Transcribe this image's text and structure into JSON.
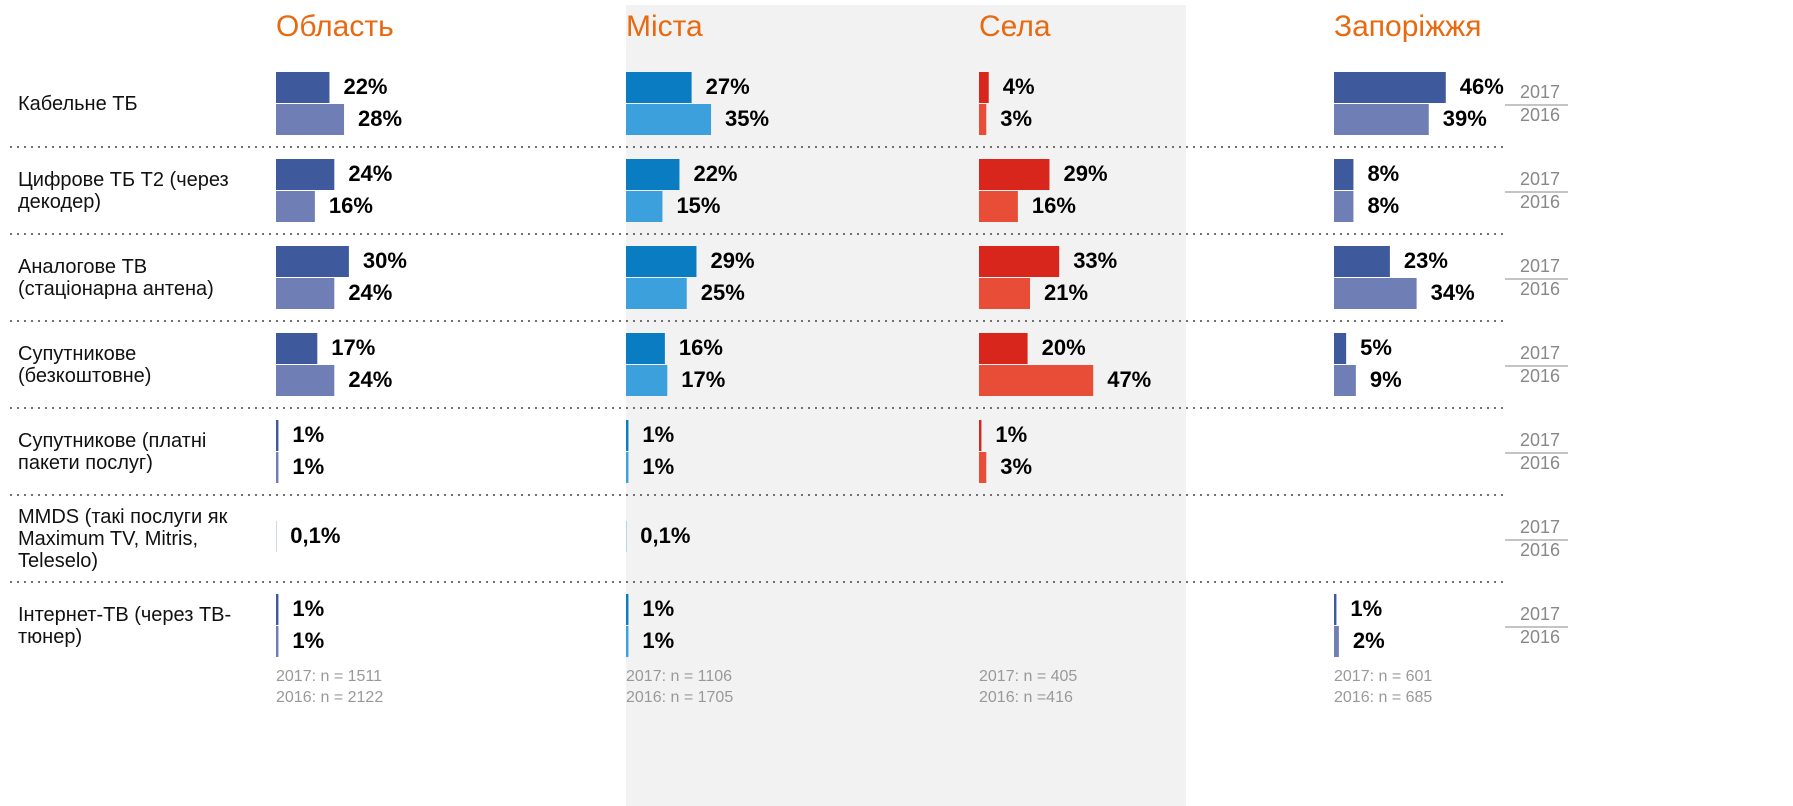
{
  "chart_data": [
    {
      "type": "bar",
      "title": "Область",
      "xlim": [
        0,
        100
      ],
      "categories": [
        "Кабельне ТБ",
        "Цифрове ТБ Т2 (через декодер)",
        "Аналогове ТВ (стаціонарна антена)",
        "Супутникове (безкоштовне)",
        "Супутникове  (платні пакети послуг)",
        "MMDS (такі послуги як Maximum TV, Mitris, Teleselo)",
        "Інтернет-ТВ (через ТВ-тюнер)"
      ],
      "series": [
        {
          "color": "#3f5a9c",
          "values": [
            22,
            24,
            30,
            17,
            1,
            0.1,
            1
          ],
          "value_labels": [
            "22%",
            "24%",
            "30%",
            "17%",
            "1%",
            "0,1%",
            "1%"
          ]
        },
        {
          "color": "#6f7fb5",
          "values": [
            28,
            16,
            24,
            24,
            1,
            null,
            1
          ],
          "value_labels": [
            "28%",
            "16%",
            "24%",
            "24%",
            "1%",
            null,
            "1%"
          ]
        }
      ],
      "notes": [
        "2017: n = 1511",
        "2016: n = 2122"
      ]
    },
    {
      "type": "bar",
      "title": "Міста",
      "xlim": [
        0,
        100
      ],
      "series": [
        {
          "color": "#0a7dc2",
          "values": [
            27,
            22,
            29,
            16,
            1,
            0.1,
            1
          ],
          "value_labels": [
            "27%",
            "22%",
            "29%",
            "16%",
            "1%",
            "0,1%",
            "1%"
          ]
        },
        {
          "color": "#3ba0dc",
          "values": [
            35,
            15,
            25,
            17,
            1,
            null,
            1
          ],
          "value_labels": [
            "35%",
            "15%",
            "25%",
            "17%",
            "1%",
            null,
            "1%"
          ]
        }
      ],
      "notes": [
        "2017: n = 1106",
        "2016: n = 1705"
      ]
    },
    {
      "type": "bar",
      "title": "Села",
      "xlim": [
        0,
        100
      ],
      "series": [
        {
          "color": "#d9261c",
          "values": [
            4,
            29,
            33,
            20,
            1,
            null,
            null
          ],
          "value_labels": [
            "4%",
            "29%",
            "33%",
            "20%",
            "1%",
            null,
            null
          ]
        },
        {
          "color": "#e84e37",
          "values": [
            3,
            16,
            21,
            47,
            3,
            null,
            null
          ],
          "value_labels": [
            "3%",
            "16%",
            "21%",
            "47%",
            "3%",
            null,
            null
          ]
        }
      ],
      "notes": [
        "2017: n = 405",
        "2016: n =416"
      ]
    },
    {
      "type": "bar",
      "title": "Запоріжжя",
      "xlim": [
        0,
        100
      ],
      "series": [
        {
          "name": "2017",
          "color": "#3f5a9c",
          "values": [
            46,
            8,
            23,
            5,
            null,
            null,
            1
          ],
          "value_labels": [
            "46%",
            "8%",
            "23%",
            "5%",
            null,
            null,
            "1%"
          ]
        },
        {
          "name": "2016",
          "color": "#6f7fb5",
          "values": [
            39,
            8,
            34,
            9,
            null,
            null,
            2
          ],
          "value_labels": [
            "39%",
            "8%",
            "34%",
            "9%",
            null,
            null,
            "2%"
          ]
        }
      ],
      "notes": [
        "2017: n = 601",
        "2016: n = 685"
      ]
    }
  ]
}
